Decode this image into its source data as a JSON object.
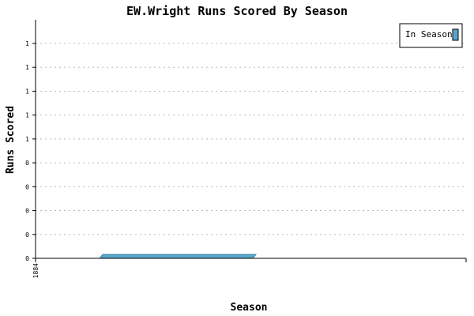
{
  "chart_data": {
    "type": "area",
    "title": "EW.Wright Runs Scored By Season",
    "xlabel": "Season",
    "ylabel": "Runs Scored",
    "y_tick_labels": [
      "0",
      "0",
      "0",
      "0",
      "0",
      "1",
      "1",
      "1",
      "1",
      "1"
    ],
    "x_tick_labels": [
      "1884"
    ],
    "series": [
      {
        "name": "In Season",
        "x": [
          1884
        ],
        "values": [
          0
        ]
      }
    ],
    "ylim": [
      0,
      1
    ],
    "grid": true,
    "legend_position": "top-right",
    "colors": {
      "series": "#5aa6c8",
      "series_edge": "#3f87a8",
      "grid": "#bbbbbb",
      "axis": "#000000"
    }
  }
}
